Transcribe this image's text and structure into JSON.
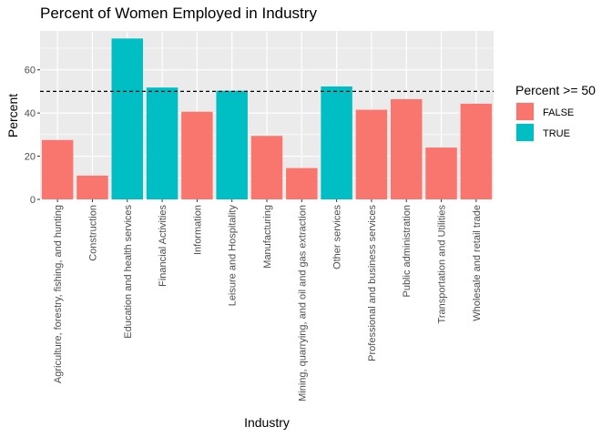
{
  "chart_data": {
    "type": "bar",
    "title": "Percent of Women Employed in Industry",
    "xlabel": "Industry",
    "ylabel": "Percent",
    "ylim": [
      0,
      78
    ],
    "yticks": [
      0,
      20,
      40,
      60
    ],
    "grid": true,
    "reference_line": {
      "y": 50,
      "style": "dashed"
    },
    "categories": [
      "Agriculture, forestry, fishing, and hunting",
      "Construction",
      "Education and health services",
      "Financial Activities",
      "Information",
      "Leisure and Hospitality",
      "Manufacturing",
      "Mining, quarrying, and oil and gas extraction",
      "Other services",
      "Professional and business services",
      "Public administration",
      "Transportation and Utilities",
      "Wholesale and retail trade"
    ],
    "values": [
      27.5,
      11,
      74.5,
      51.8,
      40.6,
      50.3,
      29.4,
      14.5,
      52.3,
      41.5,
      46.4,
      24,
      44.3
    ],
    "groups": [
      "FALSE",
      "FALSE",
      "TRUE",
      "TRUE",
      "FALSE",
      "TRUE",
      "FALSE",
      "FALSE",
      "TRUE",
      "FALSE",
      "FALSE",
      "FALSE",
      "FALSE"
    ],
    "legend": {
      "title": "Percent >= 50",
      "placement": "right",
      "entries": [
        {
          "label": "FALSE",
          "color": "#F8766D"
        },
        {
          "label": "TRUE",
          "color": "#00BFC4"
        }
      ]
    },
    "colors": {
      "panel": "#EBEBEB",
      "grid": "#FFFFFF"
    }
  }
}
